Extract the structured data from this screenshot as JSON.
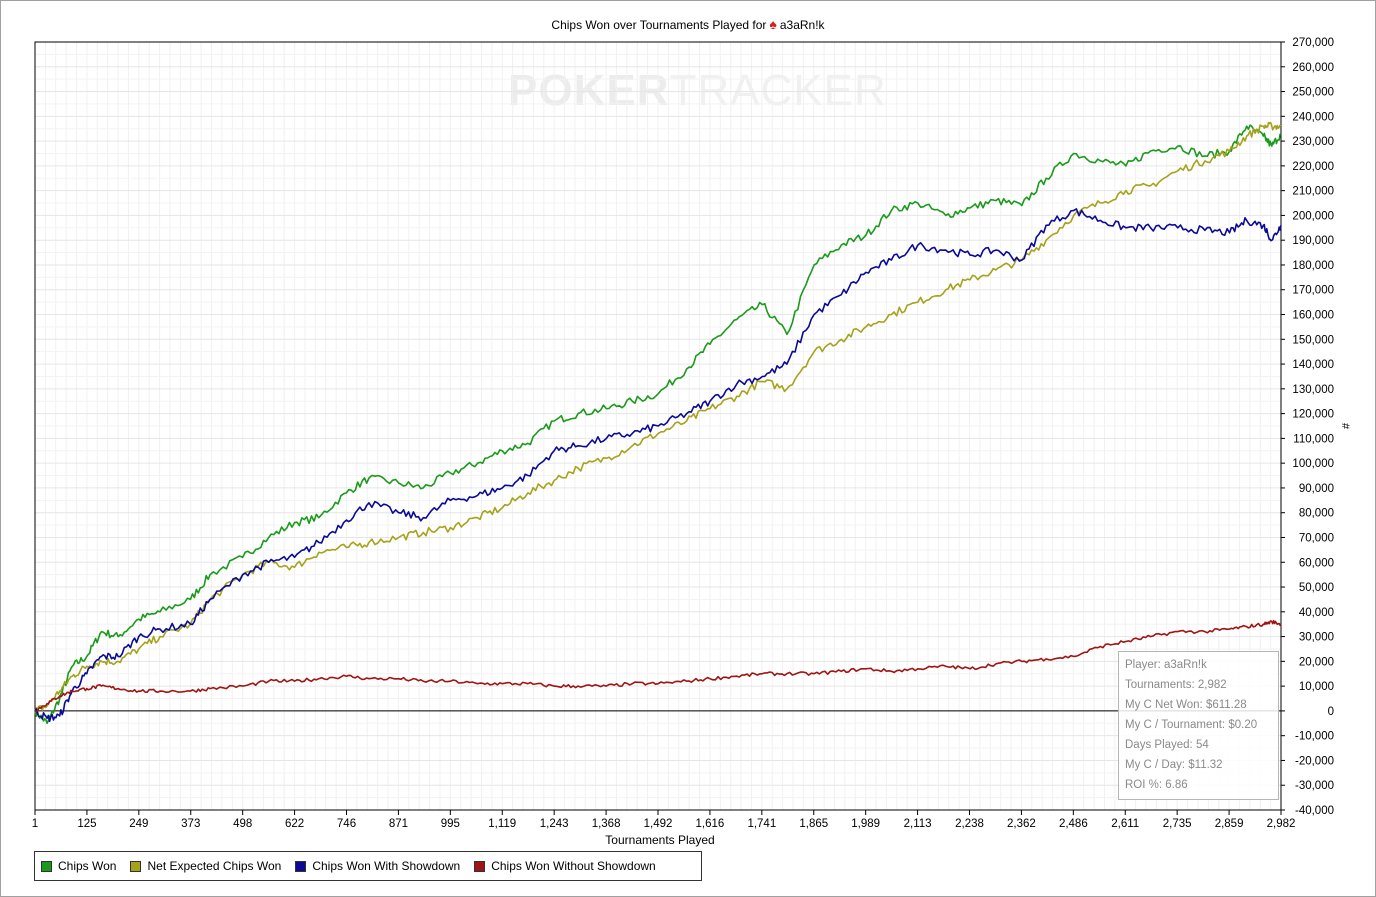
{
  "title": {
    "prefix": "Chips Won over Tournaments Played for",
    "spade_icon": "spade-icon",
    "player": "a3aRn!k"
  },
  "watermark": {
    "bold": "POKER",
    "light": "TRACKER"
  },
  "stats": [
    "Player: a3aRn!k",
    "Tournaments: 2,982",
    "My C Net Won: $611.28",
    "My C / Tournament: $0.20",
    "Days Played: 54",
    "My C / Day: $11.32",
    "ROI %: 6.86"
  ],
  "legend": [
    {
      "label": "Chips Won",
      "color": "#1a9a1a"
    },
    {
      "label": "Net Expected Chips Won",
      "color": "#a6a21a"
    },
    {
      "label": "Chips Won With Showdown",
      "color": "#0a0a96"
    },
    {
      "label": "Chips Won Without Showdown",
      "color": "#a01414"
    }
  ],
  "chart_data": {
    "type": "line",
    "title": "Chips Won over Tournaments Played for a3aRn!k",
    "xlabel": "Tournaments Played",
    "ylabel": "#",
    "xlim": [
      1,
      2982
    ],
    "ylim": [
      -40000,
      270000
    ],
    "grid": true,
    "legend_position": "bottom",
    "x_ticks": [
      "1",
      "125",
      "249",
      "373",
      "498",
      "622",
      "746",
      "871",
      "995",
      "1,119",
      "1,243",
      "1,368",
      "1,492",
      "1,616",
      "1,741",
      "1,865",
      "1,989",
      "2,113",
      "2,238",
      "2,362",
      "2,486",
      "2,611",
      "2,735",
      "2,859",
      "2,982"
    ],
    "y_ticks": [
      "270,000",
      "260,000",
      "250,000",
      "240,000",
      "230,000",
      "220,000",
      "210,000",
      "200,000",
      "190,000",
      "180,000",
      "170,000",
      "160,000",
      "150,000",
      "140,000",
      "130,000",
      "120,000",
      "110,000",
      "100,000",
      "90,000",
      "80,000",
      "70,000",
      "60,000",
      "50,000",
      "40,000",
      "30,000",
      "20,000",
      "10,000",
      "0",
      "-10,000",
      "-20,000",
      "-30,000",
      "-40,000"
    ],
    "series": [
      {
        "name": "Chips Won",
        "color": "#1a9a1a",
        "x": [
          1,
          30,
          60,
          90,
          125,
          160,
          200,
          249,
          300,
          373,
          420,
          498,
          560,
          622,
          680,
          746,
          800,
          871,
          930,
          995,
          1060,
          1119,
          1180,
          1243,
          1300,
          1368,
          1430,
          1492,
          1560,
          1616,
          1680,
          1741,
          1800,
          1865,
          1930,
          1989,
          2050,
          2113,
          2180,
          2238,
          2300,
          2362,
          2420,
          2486,
          2550,
          2611,
          2670,
          2735,
          2800,
          2859,
          2900,
          2940,
          2960,
          2982
        ],
        "y": [
          0,
          -5000,
          5000,
          18000,
          22000,
          32000,
          30000,
          37000,
          40000,
          45000,
          55000,
          62000,
          70000,
          76000,
          78000,
          88000,
          94000,
          92000,
          90000,
          96000,
          100000,
          105000,
          108000,
          117000,
          120000,
          122000,
          125000,
          128000,
          138000,
          148000,
          158000,
          164000,
          152000,
          180000,
          188000,
          192000,
          202000,
          205000,
          200000,
          203000,
          206000,
          204000,
          215000,
          225000,
          222000,
          220000,
          226000,
          228000,
          224000,
          226000,
          236000,
          232000,
          228000,
          233000
        ]
      },
      {
        "name": "Net Expected Chips Won",
        "color": "#a6a21a",
        "x": [
          1,
          30,
          60,
          90,
          125,
          160,
          200,
          249,
          300,
          373,
          420,
          498,
          560,
          622,
          680,
          746,
          800,
          871,
          930,
          995,
          1060,
          1119,
          1180,
          1243,
          1300,
          1368,
          1430,
          1492,
          1560,
          1616,
          1680,
          1741,
          1800,
          1865,
          1930,
          1989,
          2050,
          2113,
          2180,
          2238,
          2300,
          2362,
          2420,
          2486,
          2550,
          2611,
          2670,
          2735,
          2800,
          2859,
          2900,
          2940,
          2960,
          2982
        ],
        "y": [
          0,
          2000,
          8000,
          14000,
          18000,
          20000,
          20000,
          25000,
          30000,
          35000,
          45000,
          55000,
          60000,
          58000,
          64000,
          66000,
          68000,
          70000,
          72000,
          74000,
          78000,
          82000,
          88000,
          93000,
          98000,
          102000,
          107000,
          112000,
          117000,
          122000,
          127000,
          133000,
          130000,
          145000,
          150000,
          155000,
          160000,
          165000,
          170000,
          174000,
          178000,
          182000,
          190000,
          200000,
          205000,
          210000,
          212000,
          218000,
          222000,
          226000,
          232000,
          236000,
          236000,
          236000
        ]
      },
      {
        "name": "Chips Won With Showdown",
        "color": "#0a0a96",
        "x": [
          1,
          30,
          60,
          90,
          125,
          160,
          200,
          249,
          300,
          373,
          420,
          498,
          560,
          622,
          680,
          746,
          800,
          871,
          930,
          995,
          1060,
          1119,
          1180,
          1243,
          1300,
          1368,
          1430,
          1492,
          1560,
          1616,
          1680,
          1741,
          1800,
          1865,
          1930,
          1989,
          2050,
          2113,
          2180,
          2238,
          2300,
          2362,
          2420,
          2486,
          2550,
          2611,
          2670,
          2735,
          2800,
          2859,
          2900,
          2940,
          2960,
          2982
        ],
        "y": [
          0,
          -3000,
          -2000,
          8000,
          15000,
          22000,
          22000,
          30000,
          33000,
          35000,
          45000,
          55000,
          60000,
          62000,
          68000,
          77000,
          84000,
          80000,
          78000,
          85000,
          87000,
          90000,
          95000,
          105000,
          107000,
          110000,
          112000,
          115000,
          120000,
          125000,
          132000,
          135000,
          140000,
          160000,
          168000,
          177000,
          182000,
          188000,
          186000,
          184000,
          186000,
          182000,
          196000,
          202000,
          198000,
          195000,
          195000,
          195000,
          194000,
          193000,
          198000,
          196000,
          190000,
          196000
        ]
      },
      {
        "name": "Chips Won Without Showdown",
        "color": "#a01414",
        "x": [
          1,
          30,
          60,
          90,
          125,
          160,
          200,
          249,
          300,
          373,
          420,
          498,
          560,
          622,
          680,
          746,
          800,
          871,
          930,
          995,
          1060,
          1119,
          1180,
          1243,
          1300,
          1368,
          1430,
          1492,
          1560,
          1616,
          1680,
          1741,
          1800,
          1865,
          1930,
          1989,
          2050,
          2113,
          2180,
          2238,
          2300,
          2362,
          2420,
          2486,
          2550,
          2611,
          2670,
          2735,
          2800,
          2859,
          2900,
          2940,
          2960,
          2982
        ],
        "y": [
          0,
          3000,
          6000,
          8000,
          9000,
          10000,
          9000,
          8000,
          8000,
          8000,
          9000,
          10000,
          12000,
          12000,
          13000,
          14000,
          13000,
          13000,
          12000,
          12000,
          11000,
          11000,
          11000,
          10000,
          10000,
          10000,
          11000,
          11000,
          12000,
          13000,
          14000,
          15000,
          15000,
          15000,
          16000,
          17000,
          16000,
          17000,
          18000,
          17000,
          19000,
          20000,
          21000,
          22000,
          26000,
          28000,
          30000,
          32000,
          32000,
          33000,
          34000,
          35000,
          36000,
          35000
        ]
      }
    ]
  }
}
